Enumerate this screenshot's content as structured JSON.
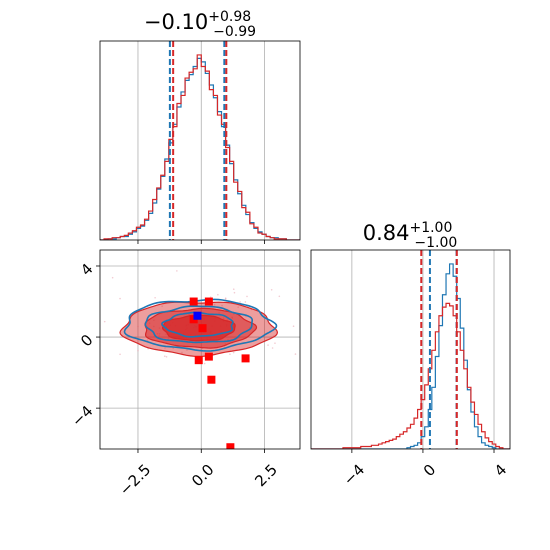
{
  "chart_data": {
    "type": "corner",
    "colors": {
      "series_a": "#1f77b4",
      "series_b": "#d62728",
      "marker_truth": "#0000ff",
      "marker_points": "#ff0000"
    },
    "panels": [
      {
        "name": "hist-param-1",
        "type": "histogram",
        "title": {
          "main": "−0.10",
          "sup": "+0.98",
          "sub": "−0.99"
        },
        "xlim": [
          -4.0,
          3.9
        ],
        "quantile_lines": {
          "series_a": [
            -1.2,
            0.95
          ],
          "series_b": [
            -1.15,
            0.95
          ]
        },
        "bin_edges_start": -4.0,
        "bin_width": 0.16,
        "series_a_counts": [
          0,
          0,
          1,
          1,
          2,
          3,
          3,
          5,
          7,
          10,
          12,
          17,
          23,
          32,
          44,
          55,
          70,
          84,
          100,
          115,
          128,
          138,
          143,
          150,
          157,
          154,
          144,
          134,
          123,
          111,
          98,
          82,
          66,
          52,
          40,
          30,
          22,
          15,
          10,
          7,
          5,
          3,
          2,
          2,
          1,
          1,
          0,
          0,
          0,
          0
        ],
        "series_b_counts": [
          0,
          1,
          1,
          2,
          2,
          3,
          4,
          6,
          8,
          11,
          13,
          18,
          25,
          35,
          45,
          56,
          68,
          87,
          98,
          118,
          125,
          140,
          145,
          148,
          160,
          150,
          146,
          130,
          125,
          108,
          100,
          80,
          68,
          50,
          42,
          28,
          24,
          14,
          11,
          6,
          5,
          3,
          2,
          1,
          1,
          1,
          0,
          0,
          0,
          0
        ]
      },
      {
        "name": "hist-param-2",
        "type": "histogram",
        "title": {
          "main": "0.84",
          "sup": "+1.00",
          "sub": "−1.00"
        },
        "xlim": [
          -6.3,
          4.9
        ],
        "quantile_lines": {
          "series_a": [
            0.45,
            1.95
          ],
          "series_b": [
            -0.15,
            1.85
          ]
        },
        "bin_edges_start": -6.3,
        "bin_width": 0.2,
        "series_a_counts": [
          0,
          0,
          0,
          0,
          0,
          0,
          0,
          0,
          0,
          0,
          0,
          0,
          0,
          0,
          0,
          0,
          0,
          0,
          0,
          0,
          0,
          0,
          0,
          0,
          0,
          0,
          0,
          1,
          2,
          3,
          5,
          10,
          18,
          32,
          50,
          75,
          100,
          125,
          142,
          150,
          140,
          122,
          98,
          72,
          48,
          30,
          18,
          10,
          5,
          3,
          2,
          1,
          0,
          0,
          0,
          0
        ],
        "series_b_counts": [
          0,
          0,
          0,
          0,
          0,
          0,
          0,
          0,
          0,
          1,
          1,
          1,
          1,
          1,
          2,
          2,
          2,
          3,
          3,
          4,
          5,
          6,
          7,
          8,
          10,
          12,
          14,
          17,
          20,
          25,
          32,
          40,
          52,
          65,
          80,
          95,
          108,
          115,
          118,
          116,
          108,
          95,
          80,
          65,
          50,
          38,
          28,
          20,
          14,
          9,
          6,
          4,
          2,
          1,
          0,
          0
        ]
      },
      {
        "name": "joint-param-1-param-2",
        "type": "contour",
        "xlim": [
          -4.0,
          3.9
        ],
        "ylim": [
          -6.3,
          4.9
        ],
        "series_a_center": [
          -0.1,
          0.7
        ],
        "series_a_sigma": [
          1.45,
          0.7
        ],
        "series_b_center": [
          -0.1,
          0.5
        ],
        "series_b_sigma": [
          1.5,
          0.75
        ],
        "truth_point": [
          -0.15,
          1.2
        ],
        "red_points": [
          [
            -0.3,
            2.0
          ],
          [
            0.3,
            2.0
          ],
          [
            -0.3,
            1.0
          ],
          [
            0.05,
            0.5
          ],
          [
            -0.1,
            -1.3
          ],
          [
            0.3,
            -1.1
          ],
          [
            1.75,
            -1.2
          ],
          [
            0.4,
            -2.4
          ],
          [
            1.15,
            -6.2
          ]
        ]
      }
    ],
    "x_ticks_param1": [
      -2.5,
      0.0,
      2.5
    ],
    "x_tick_labels_param1": [
      "−2.5",
      "0.0",
      "2.5"
    ],
    "x_ticks_param2": [
      -4,
      0,
      4
    ],
    "x_tick_labels_param2": [
      "−4",
      "0",
      "4"
    ],
    "y_ticks_param2": [
      4,
      0,
      -4
    ],
    "y_tick_labels_param2": [
      "4",
      "0",
      "−4"
    ]
  }
}
